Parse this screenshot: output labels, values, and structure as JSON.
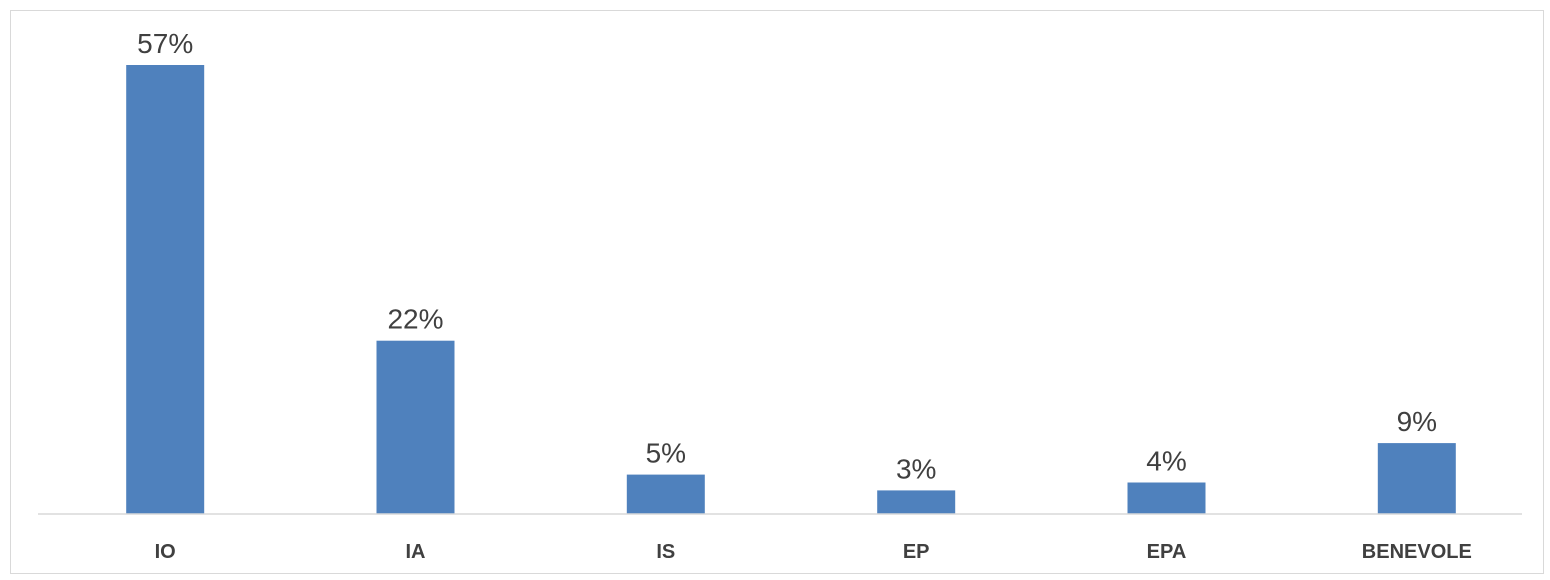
{
  "chart_data": {
    "type": "bar",
    "title": "",
    "xlabel": "",
    "ylabel": "",
    "categories": [
      "IO",
      "IA",
      "IS",
      "EP",
      "EPA",
      "BENEVOLE"
    ],
    "values": [
      57,
      22,
      5,
      3,
      4,
      9
    ],
    "data_labels": [
      "57%",
      "22%",
      "5%",
      "3%",
      "4%",
      "9%"
    ],
    "unit": "%",
    "ylim": [
      0,
      60
    ],
    "grid": false,
    "legend": "none",
    "bar_color": "#4f81bd"
  }
}
